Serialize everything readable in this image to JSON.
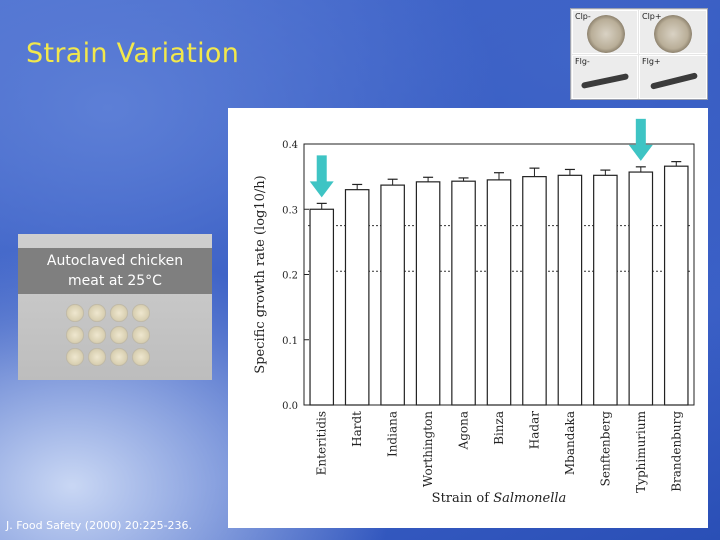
{
  "slide": {
    "title": "Strain Variation",
    "citation": "J. Food Safety (2000) 20:225-236."
  },
  "inset": {
    "labels": [
      "Clp-",
      "Clp+",
      "Flg-",
      "Flg+"
    ]
  },
  "photo": {
    "caption_line1": "Autoclaved chicken",
    "caption_line2": "meat at 25°C"
  },
  "colors": {
    "arrow": "#3ec4c4",
    "title": "#f2e84c"
  },
  "chart_data": {
    "type": "bar",
    "title": "",
    "ylabel": "Specific growth rate (log10/h)",
    "xlabel_prefix": "Strain of ",
    "xlabel_italic": "Salmonella",
    "ylim": [
      0,
      0.4
    ],
    "yticks": [
      0.0,
      0.1,
      0.2,
      0.3,
      0.4
    ],
    "ytick_labels": [
      "0.0",
      "0.1",
      "0.2",
      "0.3",
      "0.4"
    ],
    "categories": [
      "Enteritidis",
      "Hardt",
      "Indiana",
      "Worthington",
      "Agona",
      "Binza",
      "Hadar",
      "Mbandaka",
      "Senftenberg",
      "Typhimurium",
      "Brandenburg"
    ],
    "values": [
      0.3,
      0.33,
      0.337,
      0.342,
      0.343,
      0.345,
      0.35,
      0.352,
      0.352,
      0.357,
      0.366
    ],
    "errors": [
      0.009,
      0.008,
      0.009,
      0.007,
      0.005,
      0.011,
      0.013,
      0.009,
      0.008,
      0.008,
      0.007
    ],
    "reference_lines": [
      0.275,
      0.205
    ],
    "highlighted": [
      "Enteritidis",
      "Typhimurium"
    ],
    "bar_fill": "#ffffff",
    "grid": false
  }
}
